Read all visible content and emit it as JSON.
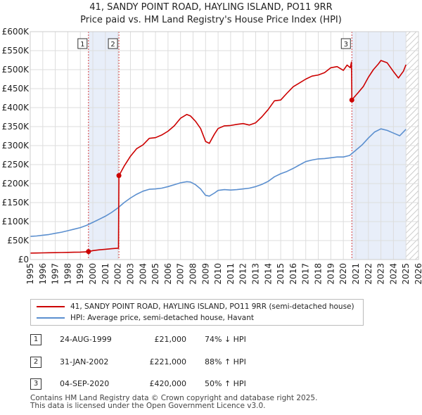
{
  "title_line1": "41, SANDY POINT ROAD, HAYLING ISLAND, PO11 9RR",
  "title_line2": "Price paid vs. HM Land Registry's House Price Index (HPI)",
  "chart_data": {
    "type": "line",
    "xlim": [
      1995,
      2026
    ],
    "ylim": [
      0,
      600000
    ],
    "x_ticks": [
      "1995",
      "1996",
      "1997",
      "1998",
      "1999",
      "2000",
      "2001",
      "2002",
      "2003",
      "2004",
      "2005",
      "2006",
      "2007",
      "2008",
      "2009",
      "2010",
      "2011",
      "2012",
      "2013",
      "2014",
      "2015",
      "2016",
      "2017",
      "2018",
      "2019",
      "2020",
      "2021",
      "2022",
      "2023",
      "2024",
      "2025",
      "2026"
    ],
    "y_ticks": [
      {
        "value": 0,
        "label": "£0"
      },
      {
        "value": 50000,
        "label": "£50K"
      },
      {
        "value": 100000,
        "label": "£100K"
      },
      {
        "value": 150000,
        "label": "£150K"
      },
      {
        "value": 200000,
        "label": "£200K"
      },
      {
        "value": 250000,
        "label": "£250K"
      },
      {
        "value": 300000,
        "label": "£300K"
      },
      {
        "value": 350000,
        "label": "£350K"
      },
      {
        "value": 400000,
        "label": "£400K"
      },
      {
        "value": 450000,
        "label": "£450K"
      },
      {
        "value": 500000,
        "label": "£500K"
      },
      {
        "value": 550000,
        "label": "£550K"
      },
      {
        "value": 600000,
        "label": "£600K"
      }
    ],
    "series": [
      {
        "name": "41, SANDY POINT ROAD, HAYLING ISLAND, PO11 9RR (semi-detached house)",
        "color": "#cc0000",
        "x": [
          1995.0,
          1995.5,
          1996.0,
          1996.5,
          1997.0,
          1997.5,
          1998.0,
          1998.5,
          1999.0,
          1999.6,
          1999.65,
          2000.0,
          2000.5,
          2001.0,
          2001.5,
          2002.05,
          2002.08,
          2002.5,
          2003.0,
          2003.5,
          2004.0,
          2004.5,
          2005.0,
          2005.5,
          2006.0,
          2006.5,
          2007.0,
          2007.5,
          2007.8,
          2008.2,
          2008.6,
          2009.0,
          2009.3,
          2009.7,
          2010.0,
          2010.5,
          2011.0,
          2011.5,
          2012.0,
          2012.5,
          2013.0,
          2013.5,
          2014.0,
          2014.5,
          2015.0,
          2015.5,
          2016.0,
          2016.5,
          2017.0,
          2017.5,
          2018.0,
          2018.5,
          2019.0,
          2019.5,
          2020.0,
          2020.3,
          2020.55,
          2020.65,
          2020.68,
          2020.8,
          2021.2,
          2021.6,
          2022.0,
          2022.4,
          2022.8,
          2023.0,
          2023.5,
          2024.0,
          2024.4,
          2024.8,
          2025.0
        ],
        "values": [
          17000,
          17300,
          17600,
          17900,
          18200,
          18500,
          18800,
          19200,
          19700,
          20600,
          21000,
          23500,
          25500,
          27000,
          28500,
          30000,
          221000,
          246000,
          272000,
          292000,
          302000,
          319000,
          321000,
          328000,
          338000,
          352000,
          372000,
          382000,
          378000,
          364000,
          345000,
          311000,
          306000,
          330000,
          345000,
          352000,
          353000,
          356000,
          358000,
          354000,
          360000,
          376000,
          395000,
          418000,
          420000,
          438000,
          455000,
          465000,
          475000,
          483000,
          486000,
          492000,
          505000,
          508000,
          498000,
          512000,
          505000,
          520000,
          420000,
          425000,
          440000,
          456000,
          480000,
          500000,
          515000,
          524000,
          518000,
          495000,
          478000,
          496000,
          513000
        ]
      },
      {
        "name": "HPI: Average price, semi-detached house, Havant",
        "color": "#5b8fcf",
        "x": [
          1995.0,
          1995.5,
          1996.0,
          1996.5,
          1997.0,
          1997.5,
          1998.0,
          1998.5,
          1999.0,
          1999.5,
          2000.0,
          2000.5,
          2001.0,
          2001.5,
          2002.0,
          2002.5,
          2003.0,
          2003.5,
          2004.0,
          2004.5,
          2005.0,
          2005.5,
          2006.0,
          2006.5,
          2007.0,
          2007.5,
          2007.8,
          2008.2,
          2008.6,
          2009.0,
          2009.3,
          2009.7,
          2010.0,
          2010.5,
          2011.0,
          2011.5,
          2012.0,
          2012.5,
          2013.0,
          2013.5,
          2014.0,
          2014.5,
          2015.0,
          2015.5,
          2016.0,
          2016.5,
          2017.0,
          2017.5,
          2018.0,
          2018.5,
          2019.0,
          2019.5,
          2020.0,
          2020.5,
          2021.0,
          2021.5,
          2022.0,
          2022.5,
          2023.0,
          2023.5,
          2024.0,
          2024.5,
          2025.0
        ],
        "values": [
          61000,
          62000,
          64000,
          66000,
          69000,
          72000,
          76000,
          80000,
          84000,
          90000,
          98000,
          106000,
          114000,
          124000,
          136000,
          150000,
          162000,
          172000,
          180000,
          185000,
          186000,
          188000,
          192000,
          197000,
          202000,
          205000,
          204000,
          197000,
          186000,
          169000,
          167000,
          175000,
          182000,
          184000,
          183000,
          184000,
          186000,
          188000,
          192000,
          198000,
          206000,
          218000,
          226000,
          232000,
          240000,
          249000,
          258000,
          262000,
          265000,
          266000,
          268000,
          270000,
          270000,
          274000,
          288000,
          302000,
          320000,
          336000,
          344000,
          340000,
          333000,
          326000,
          343000
        ]
      }
    ],
    "sale_markers": [
      {
        "label": "1",
        "x": 1999.65,
        "value": 21000
      },
      {
        "label": "2",
        "x": 2002.08,
        "value": 221000
      },
      {
        "label": "3",
        "x": 2020.68,
        "value": 420000
      }
    ],
    "shaded_periods": [
      {
        "from": 1999.65,
        "to": 2002.08
      },
      {
        "from": 2020.68,
        "to": 2025.0
      }
    ],
    "hatched_region": {
      "from": 2025.0,
      "to": 2026.0
    }
  },
  "legend": {
    "property_label": "41, SANDY POINT ROAD, HAYLING ISLAND, PO11 9RR (semi-detached house)",
    "hpi_label": "HPI: Average price, semi-detached house, Havant",
    "property_color": "#cc0000",
    "hpi_color": "#5b8fcf"
  },
  "transactions": [
    {
      "num": "1",
      "date": "24-AUG-1999",
      "price": "£21,000",
      "hpi_change": "74% ↓ HPI"
    },
    {
      "num": "2",
      "date": "31-JAN-2002",
      "price": "£221,000",
      "hpi_change": "88% ↑ HPI"
    },
    {
      "num": "3",
      "date": "04-SEP-2020",
      "price": "£420,000",
      "hpi_change": "50% ↑ HPI"
    }
  ],
  "footer_line1": "Contains HM Land Registry data © Crown copyright and database right 2025.",
  "footer_line2": "This data is licensed under the Open Government Licence v3.0."
}
